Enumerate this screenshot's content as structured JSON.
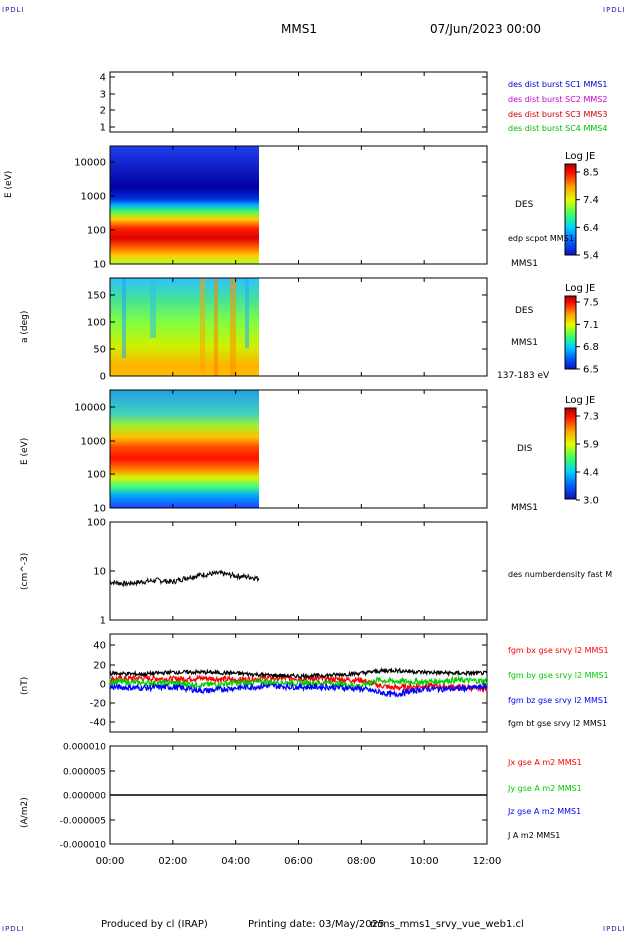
{
  "header": {
    "corner_left_top": "IPDLI",
    "corner_right_top": "IPDLI",
    "corner_left_bottom": "IPDLI",
    "corner_right_bottom": "IPDLI",
    "spacecraft": "MMS1",
    "date": "07/Jun/2023 00:00"
  },
  "footer": {
    "produced_by": "Produced by cl (IRAP)",
    "printing_date": "Printing date: 03/May/2025",
    "filename": "mms_mms1_srvy_vue_web1.cl"
  },
  "time_axis": {
    "ticks": [
      "00:00",
      "02:00",
      "04:00",
      "06:00",
      "08:00",
      "10:00",
      "12:00"
    ],
    "range_hours": [
      0,
      12
    ],
    "data_end_hours": 4.75
  },
  "panels": {
    "availability": {
      "ticks": [
        "4",
        "3",
        "2",
        "1"
      ],
      "legend": [
        {
          "label": "des dist burst SC1 MMS1",
          "color": "#0000cc"
        },
        {
          "label": "des dist burst SC2 MMS2",
          "color": "#cc00cc"
        },
        {
          "label": "des dist burst SC3 MMS3",
          "color": "#cc0000"
        },
        {
          "label": "des dist burst SC4 MMS4",
          "color": "#00bb00"
        }
      ]
    },
    "des_energy": {
      "ylabel": "E (eV)",
      "ticks": [
        "10000",
        "1000",
        "100",
        "10"
      ],
      "instrument": "DES",
      "overlay_label": "edp scpot MMS1",
      "spacecraft": "MMS1",
      "colorbar": {
        "title": "Log JE",
        "ticks": [
          "8.5",
          "7.4",
          "6.4",
          "5.4"
        ],
        "range": [
          5.4,
          8.5
        ]
      }
    },
    "des_pitch": {
      "ylabel": "a (deg)",
      "ticks": [
        "150",
        "100",
        "50",
        "0"
      ],
      "instrument": "DES",
      "spacecraft": "MMS1",
      "energy_range": "137-183 eV",
      "colorbar": {
        "title": "Log JE",
        "ticks": [
          "7.5",
          "7.1",
          "6.8",
          "6.5"
        ],
        "range": [
          6.5,
          7.5
        ]
      }
    },
    "dis_energy": {
      "ylabel": "E (eV)",
      "ticks": [
        "10000",
        "1000",
        "100",
        "10"
      ],
      "instrument": "DIS",
      "spacecraft": "MMS1",
      "colorbar": {
        "title": "Log JE",
        "ticks": [
          "7.3",
          "5.9",
          "4.4",
          "3.0"
        ],
        "range": [
          3.0,
          7.3
        ]
      }
    },
    "density": {
      "ylabel": "(cm^-3)",
      "ticks": [
        "100",
        "10",
        "1"
      ],
      "legend": "des numberdensity fast M",
      "series_color": "#000000",
      "approx_level_cm3": 6.5
    },
    "magnetic": {
      "ylabel": "(nT)",
      "ticks": [
        "40",
        "20",
        "0",
        "-20",
        "-40"
      ],
      "ylim": [
        -50,
        50
      ],
      "legend": [
        {
          "label": "fgm bx gse srvy l2 MMS1",
          "color": "#ff0000"
        },
        {
          "label": "fgm by gse srvy l2 MMS1",
          "color": "#00cc00"
        },
        {
          "label": "fgm bz gse srvy l2 MMS1",
          "color": "#0000ff"
        },
        {
          "label": "fgm bt gse srvy l2 MMS1",
          "color": "#000000"
        }
      ]
    },
    "current": {
      "ylabel": "(A/m2)",
      "ticks": [
        "0.000010",
        "0.000005",
        "0.000000",
        "-0.000005",
        "-0.000010"
      ],
      "ylim": [
        -1e-05,
        1e-05
      ],
      "legend": [
        {
          "label": "Jx gse A m2 MMS1",
          "color": "#ff0000"
        },
        {
          "label": "Jy gse A m2 MMS1",
          "color": "#00cc00"
        },
        {
          "label": "Jz gse A m2 MMS1",
          "color": "#0000ff"
        },
        {
          "label": "J A m2 MMS1",
          "color": "#000000"
        }
      ]
    }
  },
  "chart_data": [
    {
      "type": "heatmap",
      "panel": "des_energy",
      "xlim_hours": [
        0,
        12
      ],
      "ylim_eV": [
        10,
        30000
      ],
      "yscale": "log",
      "description_values": {
        "peak_energy_eV": 60,
        "high_energy_low_flux_above_eV": 600
      }
    },
    {
      "type": "heatmap",
      "panel": "des_pitch",
      "xlim_hours": [
        0,
        12
      ],
      "ylim_deg": [
        0,
        180
      ]
    },
    {
      "type": "heatmap",
      "panel": "dis_energy",
      "xlim_hours": [
        0,
        12
      ],
      "ylim_eV": [
        10,
        30000
      ],
      "yscale": "log",
      "description_values": {
        "peak_energy_eV": 300
      }
    },
    {
      "type": "line",
      "panel": "density",
      "yscale": "log",
      "ylim": [
        1,
        100
      ],
      "series": [
        {
          "x_hours": [
            0,
            0.5,
            1,
            1.5,
            2,
            2.5,
            3,
            3.5,
            4,
            4.5,
            4.75
          ],
          "values": [
            6,
            5.5,
            6,
            6.5,
            6,
            7.5,
            8.5,
            9,
            8,
            7.5,
            7
          ]
        }
      ]
    },
    {
      "type": "line",
      "panel": "magnetic",
      "ylim": [
        -50,
        50
      ],
      "series": [
        {
          "x_hours": [
            0,
            1,
            2,
            3,
            4,
            5,
            6,
            7,
            8,
            8.5,
            9,
            10,
            11,
            12
          ],
          "values": [
            4,
            5,
            4,
            5,
            3,
            5,
            5,
            4,
            3,
            -2,
            -5,
            -3,
            -4,
            -6
          ]
        },
        {
          "x_hours": [
            0,
            1,
            2,
            3,
            4,
            5,
            6,
            7,
            8,
            8.5,
            9,
            10,
            11,
            12
          ],
          "values": [
            2,
            0,
            0,
            -2,
            0,
            1,
            0,
            0,
            -3,
            3,
            2,
            1,
            3,
            2
          ]
        },
        {
          "x_hours": [
            0,
            1,
            2,
            3,
            4,
            5,
            6,
            7,
            8,
            8.5,
            9,
            10,
            11,
            12
          ],
          "values": [
            -4,
            -5,
            -4,
            -8,
            -5,
            -3,
            -4,
            -4,
            -6,
            -9,
            -12,
            -6,
            -6,
            -4
          ]
        },
        {
          "x_hours": [
            0,
            1,
            2,
            3,
            4,
            5,
            6,
            7,
            8,
            8.5,
            9,
            10,
            11,
            12
          ],
          "values": [
            10,
            9,
            11,
            11,
            10,
            8,
            7,
            8,
            10,
            12,
            13,
            11,
            10,
            10
          ]
        }
      ]
    },
    {
      "type": "line",
      "panel": "current",
      "ylim": [
        -1e-05,
        1e-05
      ],
      "series": [
        {
          "x_hours": [
            0,
            12
          ],
          "values": [
            0,
            0
          ]
        }
      ]
    }
  ]
}
